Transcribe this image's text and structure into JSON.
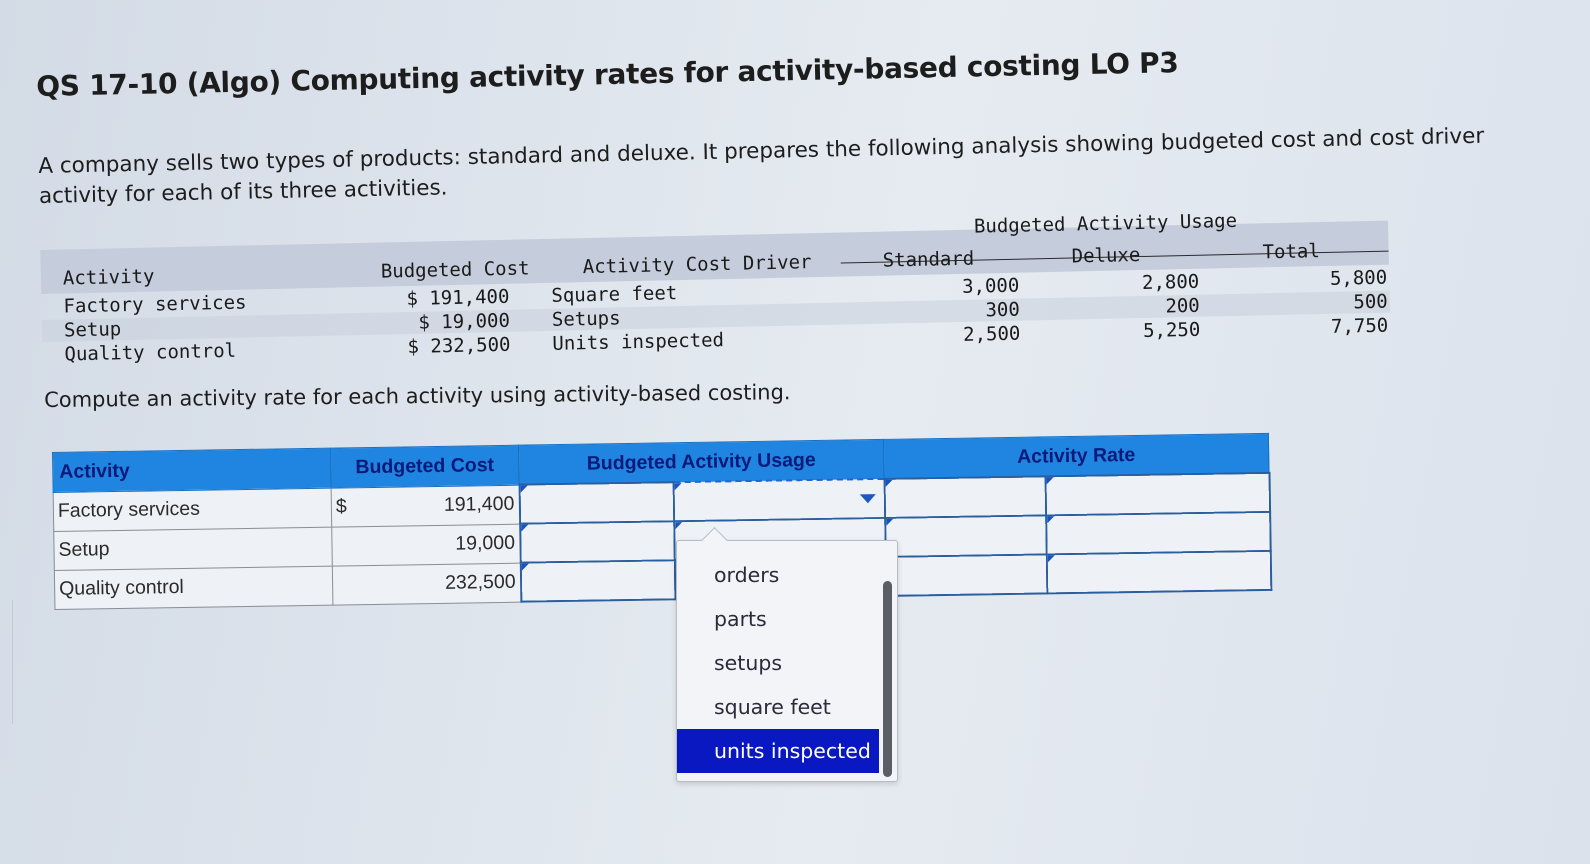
{
  "title": "QS 17-10 (Algo) Computing activity rates for activity-based costing LO P3",
  "intro": "A company sells two types of products: standard and deluxe. It prepares the following analysis showing budgeted cost and cost driver activity for each of its three activities.",
  "given": {
    "group_header": "Budgeted Activity Usage",
    "headers": {
      "activity": "Activity",
      "budgeted_cost": "Budgeted Cost",
      "driver": "Activity Cost Driver",
      "standard": "Standard",
      "deluxe": "Deluxe",
      "total": "Total"
    },
    "rows": [
      {
        "activity": "Factory services",
        "cost": "$ 191,400",
        "driver": "Square feet",
        "standard": "3,000",
        "deluxe": "2,800",
        "total": "5,800"
      },
      {
        "activity": "Setup",
        "cost": "$ 19,000",
        "driver": "Setups",
        "standard": "300",
        "deluxe": "200",
        "total": "500"
      },
      {
        "activity": "Quality control",
        "cost": "$ 232,500",
        "driver": "Units inspected",
        "standard": "2,500",
        "deluxe": "5,250",
        "total": "7,750"
      }
    ]
  },
  "prompt": "Compute an activity rate for each activity using activity-based costing.",
  "answer_table": {
    "headers": {
      "activity": "Activity",
      "budgeted_cost": "Budgeted Cost",
      "usage": "Budgeted Activity Usage",
      "rate": "Activity Rate"
    },
    "currency": "$",
    "rows": [
      {
        "activity": "Factory services",
        "cost": "191,400"
      },
      {
        "activity": "Setup",
        "cost": "19,000"
      },
      {
        "activity": "Quality control",
        "cost": "232,500"
      }
    ]
  },
  "dropdown": {
    "options": [
      "orders",
      "parts",
      "setups",
      "square feet",
      "units inspected"
    ],
    "selected": "units inspected"
  },
  "colors": {
    "header_blue": "#1f85e0",
    "selected_option": "#0a18c2",
    "border_blue": "#2b5e9e"
  }
}
